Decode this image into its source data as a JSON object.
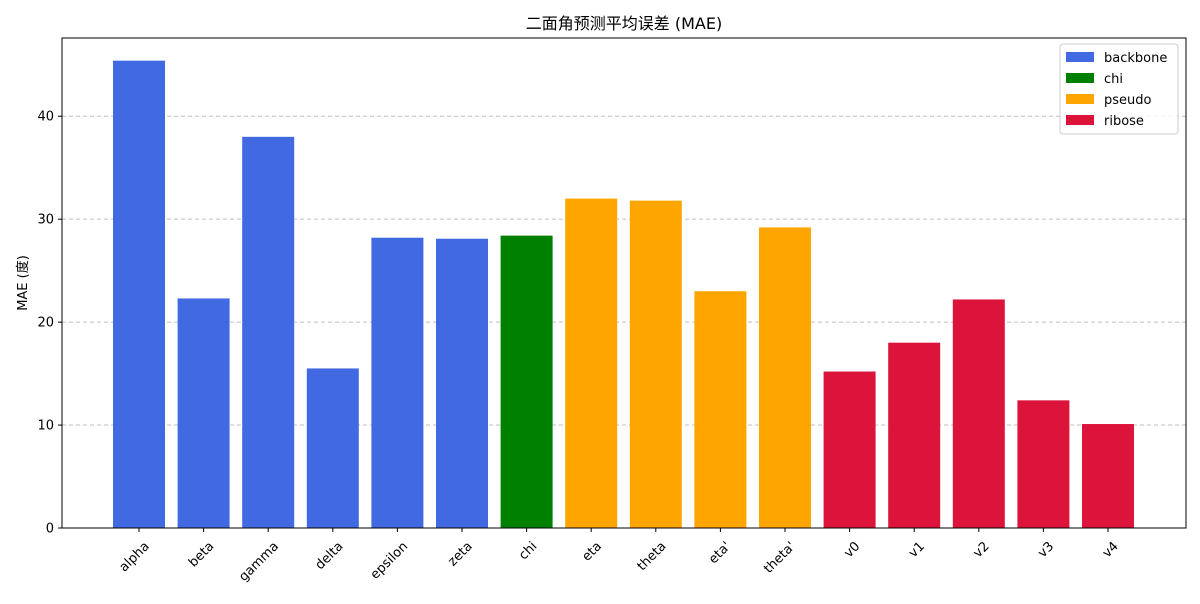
{
  "chart_data": {
    "type": "bar",
    "title": "二面角预测平均误差 (MAE)",
    "xlabel": "",
    "ylabel": "MAE (度)",
    "ylim": [
      0,
      47.6
    ],
    "yticks": [
      0,
      10,
      20,
      30,
      40
    ],
    "grid": "y",
    "legend_position": "top-right",
    "categories": [
      "alpha",
      "beta",
      "gamma",
      "delta",
      "epsilon",
      "zeta",
      "chi",
      "eta",
      "theta",
      "eta'",
      "theta'",
      "v0",
      "v1",
      "v2",
      "v3",
      "v4"
    ],
    "values": [
      45.4,
      22.3,
      38.0,
      15.5,
      28.2,
      28.1,
      28.4,
      32.0,
      31.8,
      23.0,
      29.2,
      15.2,
      18.0,
      22.2,
      12.4,
      10.1
    ],
    "groups": [
      "backbone",
      "backbone",
      "backbone",
      "backbone",
      "backbone",
      "backbone",
      "chi",
      "pseudo",
      "pseudo",
      "pseudo",
      "pseudo",
      "ribose",
      "ribose",
      "ribose",
      "ribose",
      "ribose"
    ],
    "series": [
      {
        "name": "backbone",
        "color": "#4169e1"
      },
      {
        "name": "chi",
        "color": "#008000"
      },
      {
        "name": "pseudo",
        "color": "#ffa500"
      },
      {
        "name": "ribose",
        "color": "#dc143c"
      }
    ]
  }
}
